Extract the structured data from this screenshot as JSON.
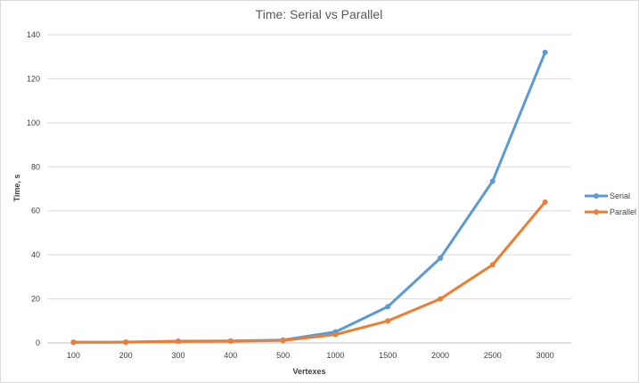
{
  "chart_data": {
    "type": "line",
    "title": "Time: Serial vs Parallel",
    "xlabel": "Vertexes",
    "ylabel": "Time, s",
    "categories": [
      "100",
      "200",
      "300",
      "400",
      "500",
      "1000",
      "1500",
      "2000",
      "2500",
      "3000"
    ],
    "ylim": [
      0,
      140
    ],
    "yticks": [
      0,
      20,
      40,
      60,
      80,
      100,
      120,
      140
    ],
    "grid": true,
    "legend_position": "right",
    "series": [
      {
        "name": "Serial",
        "color": "#5b9bd5",
        "values": [
          0.3,
          0.4,
          0.8,
          0.9,
          1.3,
          5.0,
          16.5,
          38.5,
          73.5,
          132.0
        ]
      },
      {
        "name": "Parallel",
        "color": "#ed7d31",
        "values": [
          0.3,
          0.3,
          0.7,
          0.8,
          1.1,
          3.8,
          10.0,
          20.0,
          35.5,
          64.0
        ]
      }
    ]
  }
}
